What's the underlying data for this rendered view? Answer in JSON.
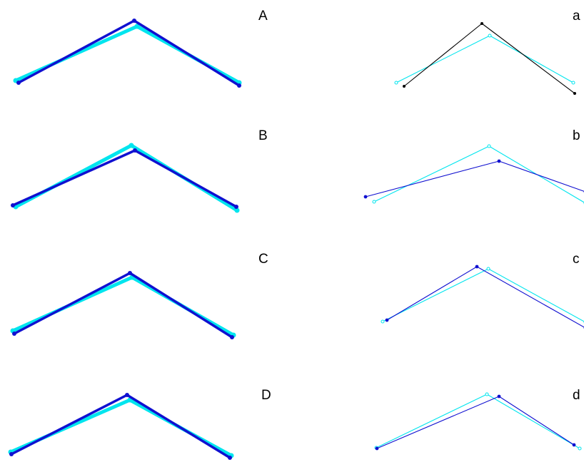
{
  "colors": {
    "reference": "#00e5ee",
    "fitted": "#1010d0",
    "initial": "#000000",
    "background": "#ffffff"
  },
  "panels": [
    {
      "id": "A",
      "label": "A",
      "column": "left",
      "lines": [
        {
          "role": "reference",
          "points": [
            [
              22,
              113
            ],
            [
              192,
              37
            ],
            [
              335,
              116
            ]
          ]
        },
        {
          "role": "fitted",
          "points": [
            [
              26,
              116
            ],
            [
              188,
              29
            ],
            [
              335,
              120
            ]
          ]
        }
      ]
    },
    {
      "id": "B",
      "label": "B",
      "column": "left",
      "lines": [
        {
          "role": "reference",
          "points": [
            [
              22,
              290
            ],
            [
              184,
              204
            ],
            [
              332,
              295
            ]
          ]
        },
        {
          "role": "fitted",
          "points": [
            [
              18,
              288
            ],
            [
              189,
              211
            ],
            [
              331,
              290
            ]
          ]
        }
      ]
    },
    {
      "id": "C",
      "label": "C",
      "column": "left",
      "lines": [
        {
          "role": "reference",
          "points": [
            [
              18,
              464
            ],
            [
              185,
              389
            ],
            [
              327,
              470
            ]
          ]
        },
        {
          "role": "fitted",
          "points": [
            [
              20,
              468
            ],
            [
              182,
              383
            ],
            [
              325,
              473
            ]
          ]
        }
      ]
    },
    {
      "id": "D",
      "label": "D",
      "column": "left",
      "lines": [
        {
          "role": "reference",
          "points": [
            [
              15,
              634
            ],
            [
              182,
              561
            ],
            [
              324,
              639
            ]
          ]
        },
        {
          "role": "fitted",
          "points": [
            [
              16,
              637
            ],
            [
              178,
              554
            ],
            [
              322,
              642
            ]
          ]
        }
      ]
    },
    {
      "id": "a",
      "label": "a",
      "column": "right",
      "lines": [
        {
          "role": "reference",
          "points": [
            [
              555,
              116
            ],
            [
              686,
              50
            ],
            [
              803,
              116
            ]
          ]
        },
        {
          "role": "initial",
          "points": [
            [
              566,
              121
            ],
            [
              675,
              33
            ],
            [
              805,
              131
            ]
          ]
        }
      ]
    },
    {
      "id": "b",
      "label": "b",
      "column": "right",
      "lines": [
        {
          "role": "reference",
          "points": [
            [
              524,
              283
            ],
            [
              685,
              205
            ],
            [
              820,
              285
            ]
          ]
        },
        {
          "role": "fitted",
          "points": [
            [
              512,
              276
            ],
            [
              699,
              226
            ],
            [
              820,
              269
            ]
          ]
        }
      ]
    },
    {
      "id": "c",
      "label": "c",
      "column": "right",
      "lines": [
        {
          "role": "reference",
          "points": [
            [
              536,
              451
            ],
            [
              684,
              377
            ],
            [
              820,
              452
            ]
          ]
        },
        {
          "role": "fitted",
          "points": [
            [
              542,
              449
            ],
            [
              668,
              374
            ],
            [
              820,
              460
            ]
          ]
        }
      ]
    },
    {
      "id": "d",
      "label": "d",
      "column": "right",
      "lines": [
        {
          "role": "reference",
          "points": [
            [
              527,
              628
            ],
            [
              682,
              553
            ],
            [
              812,
              629
            ]
          ]
        },
        {
          "role": "fitted",
          "points": [
            [
              528,
              629
            ],
            [
              699,
              556
            ],
            [
              804,
              624
            ]
          ]
        }
      ]
    }
  ]
}
